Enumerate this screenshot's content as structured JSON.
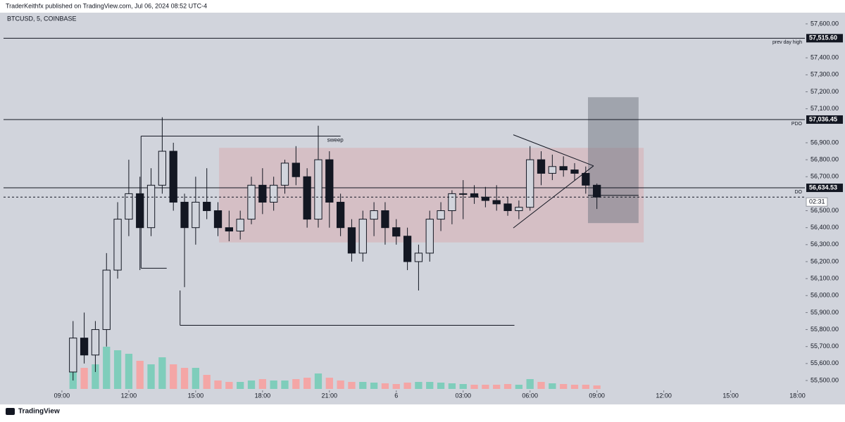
{
  "header": {
    "publisher": "TraderKeithfx published on TradingView.com, Jul 06, 2024 08:52 UTC-4"
  },
  "footer": {
    "brand": "TradingView"
  },
  "chart_data": {
    "type": "candlestick",
    "title": "BTCUSD, 5, COINBASE",
    "x": [
      9.5,
      10,
      10.5,
      11,
      11.5,
      12,
      12.5,
      13,
      13.5,
      14,
      14.5,
      15,
      15.5,
      16,
      16.5,
      17,
      17.5,
      18,
      18.5,
      19,
      19.5,
      20,
      20.5,
      21,
      21.5,
      22,
      22.5,
      23,
      23.5,
      24,
      24.5,
      25,
      25.5,
      26,
      26.5,
      27,
      27.5,
      28,
      28.5,
      29,
      29.5,
      30,
      30.5,
      31,
      31.5,
      32,
      32.5,
      33
    ],
    "open": [
      55550,
      55750,
      55650,
      55800,
      56150,
      56450,
      56600,
      56400,
      56650,
      56850,
      56550,
      56400,
      56550,
      56500,
      56400,
      56380,
      56450,
      56650,
      56550,
      56650,
      56780,
      56700,
      56450,
      56800,
      56550,
      56400,
      56250,
      56450,
      56500,
      56400,
      56350,
      56200,
      56250,
      56450,
      56500,
      56600,
      56600,
      56580,
      56560,
      56540,
      56500,
      56520,
      56800,
      56720,
      56760,
      56740,
      56720,
      56650
    ],
    "high": [
      55850,
      55900,
      55850,
      56250,
      56550,
      56800,
      56700,
      56750,
      57050,
      56900,
      56600,
      56700,
      56750,
      56550,
      56500,
      56500,
      56700,
      56750,
      56700,
      56800,
      56880,
      56750,
      57000,
      56850,
      56600,
      56450,
      56500,
      56550,
      56550,
      56450,
      56400,
      56300,
      56500,
      56550,
      56620,
      56680,
      56650,
      56640,
      56650,
      56580,
      56560,
      56880,
      56850,
      56830,
      56820,
      56780,
      56760,
      56660
    ],
    "low": [
      55500,
      55600,
      55550,
      55700,
      56100,
      56350,
      56150,
      56350,
      56600,
      56500,
      56050,
      56300,
      56450,
      56350,
      56320,
      56330,
      56420,
      56480,
      56500,
      56600,
      56650,
      56400,
      56400,
      56400,
      56350,
      56200,
      56200,
      56350,
      56300,
      56300,
      56150,
      56030,
      56200,
      56380,
      56420,
      56450,
      56540,
      56520,
      56500,
      56470,
      56450,
      56500,
      56650,
      56680,
      56700,
      56680,
      56600,
      56510
    ],
    "close": [
      55750,
      55650,
      55800,
      56150,
      56450,
      56600,
      56400,
      56650,
      56850,
      56550,
      56400,
      56550,
      56500,
      56400,
      56380,
      56450,
      56650,
      56550,
      56650,
      56780,
      56700,
      56450,
      56800,
      56550,
      56400,
      56250,
      56450,
      56500,
      56400,
      56350,
      56200,
      56250,
      56450,
      56500,
      56600,
      56600,
      56580,
      56560,
      56540,
      56500,
      56520,
      56800,
      56720,
      56760,
      56740,
      56720,
      56650,
      56580
    ],
    "volume": [
      40,
      30,
      35,
      60,
      55,
      50,
      40,
      35,
      45,
      35,
      30,
      30,
      20,
      12,
      10,
      10,
      12,
      14,
      12,
      12,
      14,
      16,
      22,
      16,
      12,
      10,
      10,
      9,
      8,
      7,
      9,
      10,
      10,
      9,
      8,
      7,
      6,
      6,
      6,
      7,
      6,
      14,
      10,
      8,
      7,
      6,
      6,
      5
    ],
    "volume_ylim": [
      0,
      100
    ],
    "up_color": "#d1d4dc",
    "down_color": "#131722",
    "volume_up_color": "#7fcdbb",
    "volume_down_color": "#f4a6a6",
    "xlim": [
      6.38,
      42.33
    ],
    "xticks": [
      {
        "value": 9,
        "label": "09:00"
      },
      {
        "value": 12,
        "label": "12:00"
      },
      {
        "value": 15,
        "label": "15:00"
      },
      {
        "value": 18,
        "label": "18:00"
      },
      {
        "value": 21,
        "label": "21:00"
      },
      {
        "value": 24,
        "label": "6"
      },
      {
        "value": 27,
        "label": "03:00"
      },
      {
        "value": 30,
        "label": "06:00"
      },
      {
        "value": 33,
        "label": "09:00"
      },
      {
        "value": 36,
        "label": "12:00"
      },
      {
        "value": 39,
        "label": "15:00"
      },
      {
        "value": 42,
        "label": "18:00"
      }
    ],
    "ylim": [
      55442,
      57666
    ],
    "yticks": [
      {
        "value": 55500,
        "label": "55,500.00"
      },
      {
        "value": 55600,
        "label": "55,600.00"
      },
      {
        "value": 55700,
        "label": "55,700.00"
      },
      {
        "value": 55800,
        "label": "55,800.00"
      },
      {
        "value": 55900,
        "label": "55,900.00"
      },
      {
        "value": 56000,
        "label": "56,000.00"
      },
      {
        "value": 56100,
        "label": "56,100.00"
      },
      {
        "value": 56200,
        "label": "56,200.00"
      },
      {
        "value": 56300,
        "label": "56,300.00"
      },
      {
        "value": 56400,
        "label": "56,400.00"
      },
      {
        "value": 56500,
        "label": "56,500.00"
      },
      {
        "value": 56700,
        "label": "56,700.00"
      },
      {
        "value": 56800,
        "label": "56,800.00"
      },
      {
        "value": 56900,
        "label": "56,900.00"
      },
      {
        "value": 57100,
        "label": "57,100.00"
      },
      {
        "value": 57200,
        "label": "57,200.00"
      },
      {
        "value": 57300,
        "label": "57,300.00"
      },
      {
        "value": 57400,
        "label": "57,400.00"
      },
      {
        "value": 57600,
        "label": "57,600.00"
      }
    ],
    "levels": [
      {
        "value": 57515.6,
        "label": "57,515.60",
        "name": "prev day high"
      },
      {
        "value": 57036.45,
        "label": "57,036.45",
        "name": "PDO"
      },
      {
        "value": 56634.53,
        "label": "56,634.53",
        "name": "DO"
      }
    ],
    "current_price": 56580,
    "countdown": "02:31",
    "zones": [
      {
        "x": [
          16.05,
          35.1
        ],
        "y": [
          56313,
          56870
        ],
        "color": "rgba(239,83,80,0.16)"
      },
      {
        "x": [
          32.6,
          34.87
        ],
        "y": [
          56427,
          57168
        ],
        "color": "rgba(120,123,134,0.55)"
      }
    ],
    "segments": [
      {
        "x": [
          12.55,
          21.5
        ],
        "y": [
          56939,
          56939
        ]
      },
      {
        "x": [
          12.55,
          12.55
        ],
        "y": [
          56939,
          56161
        ]
      },
      {
        "x": [
          12.55,
          13.7
        ],
        "y": [
          56161,
          56161
        ]
      },
      {
        "x": [
          14.3,
          14.3
        ],
        "y": [
          56030,
          55825
        ]
      },
      {
        "x": [
          14.3,
          29.3
        ],
        "y": [
          55825,
          55825
        ]
      },
      {
        "x": [
          29.25,
          32.85
        ],
        "y": [
          56947,
          56764
        ]
      },
      {
        "x": [
          29.25,
          32.85
        ],
        "y": [
          56398,
          56764
        ]
      },
      {
        "x": [
          32.6,
          34.87
        ],
        "y": [
          56590,
          56590
        ]
      }
    ],
    "annotations": [
      {
        "text": "sweep",
        "x": 20.9,
        "y": 56915
      }
    ]
  }
}
